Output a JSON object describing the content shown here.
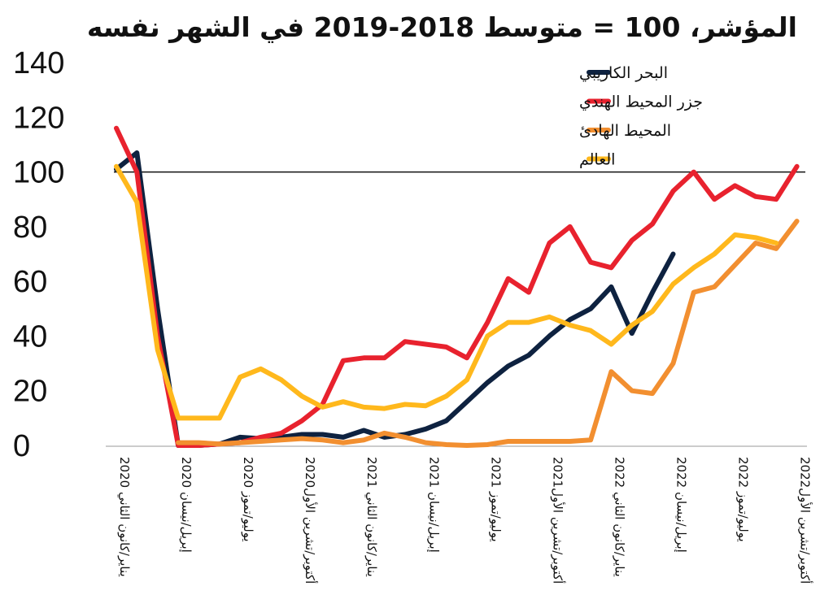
{
  "chart_data": {
    "type": "line",
    "title": "المؤشر، 100 = متوسط 2018-2019 في الشهر نفسه",
    "xlabel": "",
    "ylabel": "",
    "ylim": [
      0,
      140
    ],
    "yticks": [
      0,
      20,
      40,
      60,
      80,
      100,
      120,
      140
    ],
    "reference_line": 100,
    "grid": false,
    "legend_position": "top-right",
    "x": [
      "2020-01",
      "2020-02",
      "2020-03",
      "2020-04",
      "2020-05",
      "2020-06",
      "2020-07",
      "2020-08",
      "2020-09",
      "2020-10",
      "2020-11",
      "2020-12",
      "2021-01",
      "2021-02",
      "2021-03",
      "2021-04",
      "2021-05",
      "2021-06",
      "2021-07",
      "2021-08",
      "2021-09",
      "2021-10",
      "2021-11",
      "2021-12",
      "2022-01",
      "2022-02",
      "2022-03",
      "2022-04",
      "2022-05",
      "2022-06",
      "2022-07",
      "2022-08",
      "2022-09",
      "2022-10"
    ],
    "x_tick_labels": [
      {
        "x": "2020-01",
        "label": "يناير/كانون الثاني 2020"
      },
      {
        "x": "2020-04",
        "label": "إبريل/نيسان  2020"
      },
      {
        "x": "2020-07",
        "label": "يوليو/تموز  2020"
      },
      {
        "x": "2020-10",
        "label": "أكتوبر/تشرين الأول2020"
      },
      {
        "x": "2021-01",
        "label": "يناير/كانون الثاني 2021"
      },
      {
        "x": "2021-04",
        "label": "إبريل/نيسان  2021"
      },
      {
        "x": "2021-07",
        "label": "يوليو/تموز  2021"
      },
      {
        "x": "2021-10",
        "label": "أكتوبر/تشرين الأول2021"
      },
      {
        "x": "2022-01",
        "label": "يناير/كانون الثاني 2022"
      },
      {
        "x": "2022-04",
        "label": "إبريل/نيسان  2022"
      },
      {
        "x": "2022-07",
        "label": "يوليو/تموز  2022"
      },
      {
        "x": "2022-10",
        "label": "أكتوبر/تشرين الأول2022"
      }
    ],
    "series": [
      {
        "name": "البحر الكاريبي",
        "color": "#0e2240",
        "values": [
          101,
          107,
          50,
          0,
          0,
          0.5,
          3,
          2.5,
          3,
          4,
          4,
          3,
          5.5,
          3,
          4,
          6,
          9,
          16,
          23,
          29,
          33,
          40,
          46,
          50,
          58,
          41,
          56,
          70,
          null,
          null,
          null,
          null,
          null,
          null
        ]
      },
      {
        "name": "جزر المحيط الهندي",
        "color": "#e8222e",
        "values": [
          116,
          100,
          40,
          0,
          0,
          0.5,
          1,
          3,
          4.5,
          9,
          15,
          31,
          32,
          32,
          38,
          37,
          36,
          32,
          45,
          61,
          56,
          74,
          80,
          67,
          65,
          75,
          81,
          93,
          100,
          90,
          95,
          91,
          90,
          102
        ]
      },
      {
        "name": "المحيط الهادئ",
        "color": "#f28f30",
        "values": [
          null,
          null,
          null,
          1,
          1,
          0.5,
          1,
          1.5,
          2,
          2.5,
          2,
          1,
          2,
          4.5,
          3,
          1,
          0.3,
          0,
          0.3,
          1.5,
          1.5,
          1.5,
          1.5,
          2,
          27,
          20,
          19,
          30,
          56,
          58,
          66,
          74,
          72,
          82
        ]
      },
      {
        "name": "العالم",
        "color": "#ffb81c",
        "values": [
          102,
          89,
          35,
          10,
          10,
          10,
          25,
          28,
          24,
          18,
          14,
          16,
          14,
          13.5,
          15,
          14.5,
          18,
          24,
          40,
          45,
          45,
          47,
          44,
          42,
          37,
          44,
          49,
          59,
          65,
          70,
          77,
          76,
          74,
          null
        ]
      }
    ]
  }
}
